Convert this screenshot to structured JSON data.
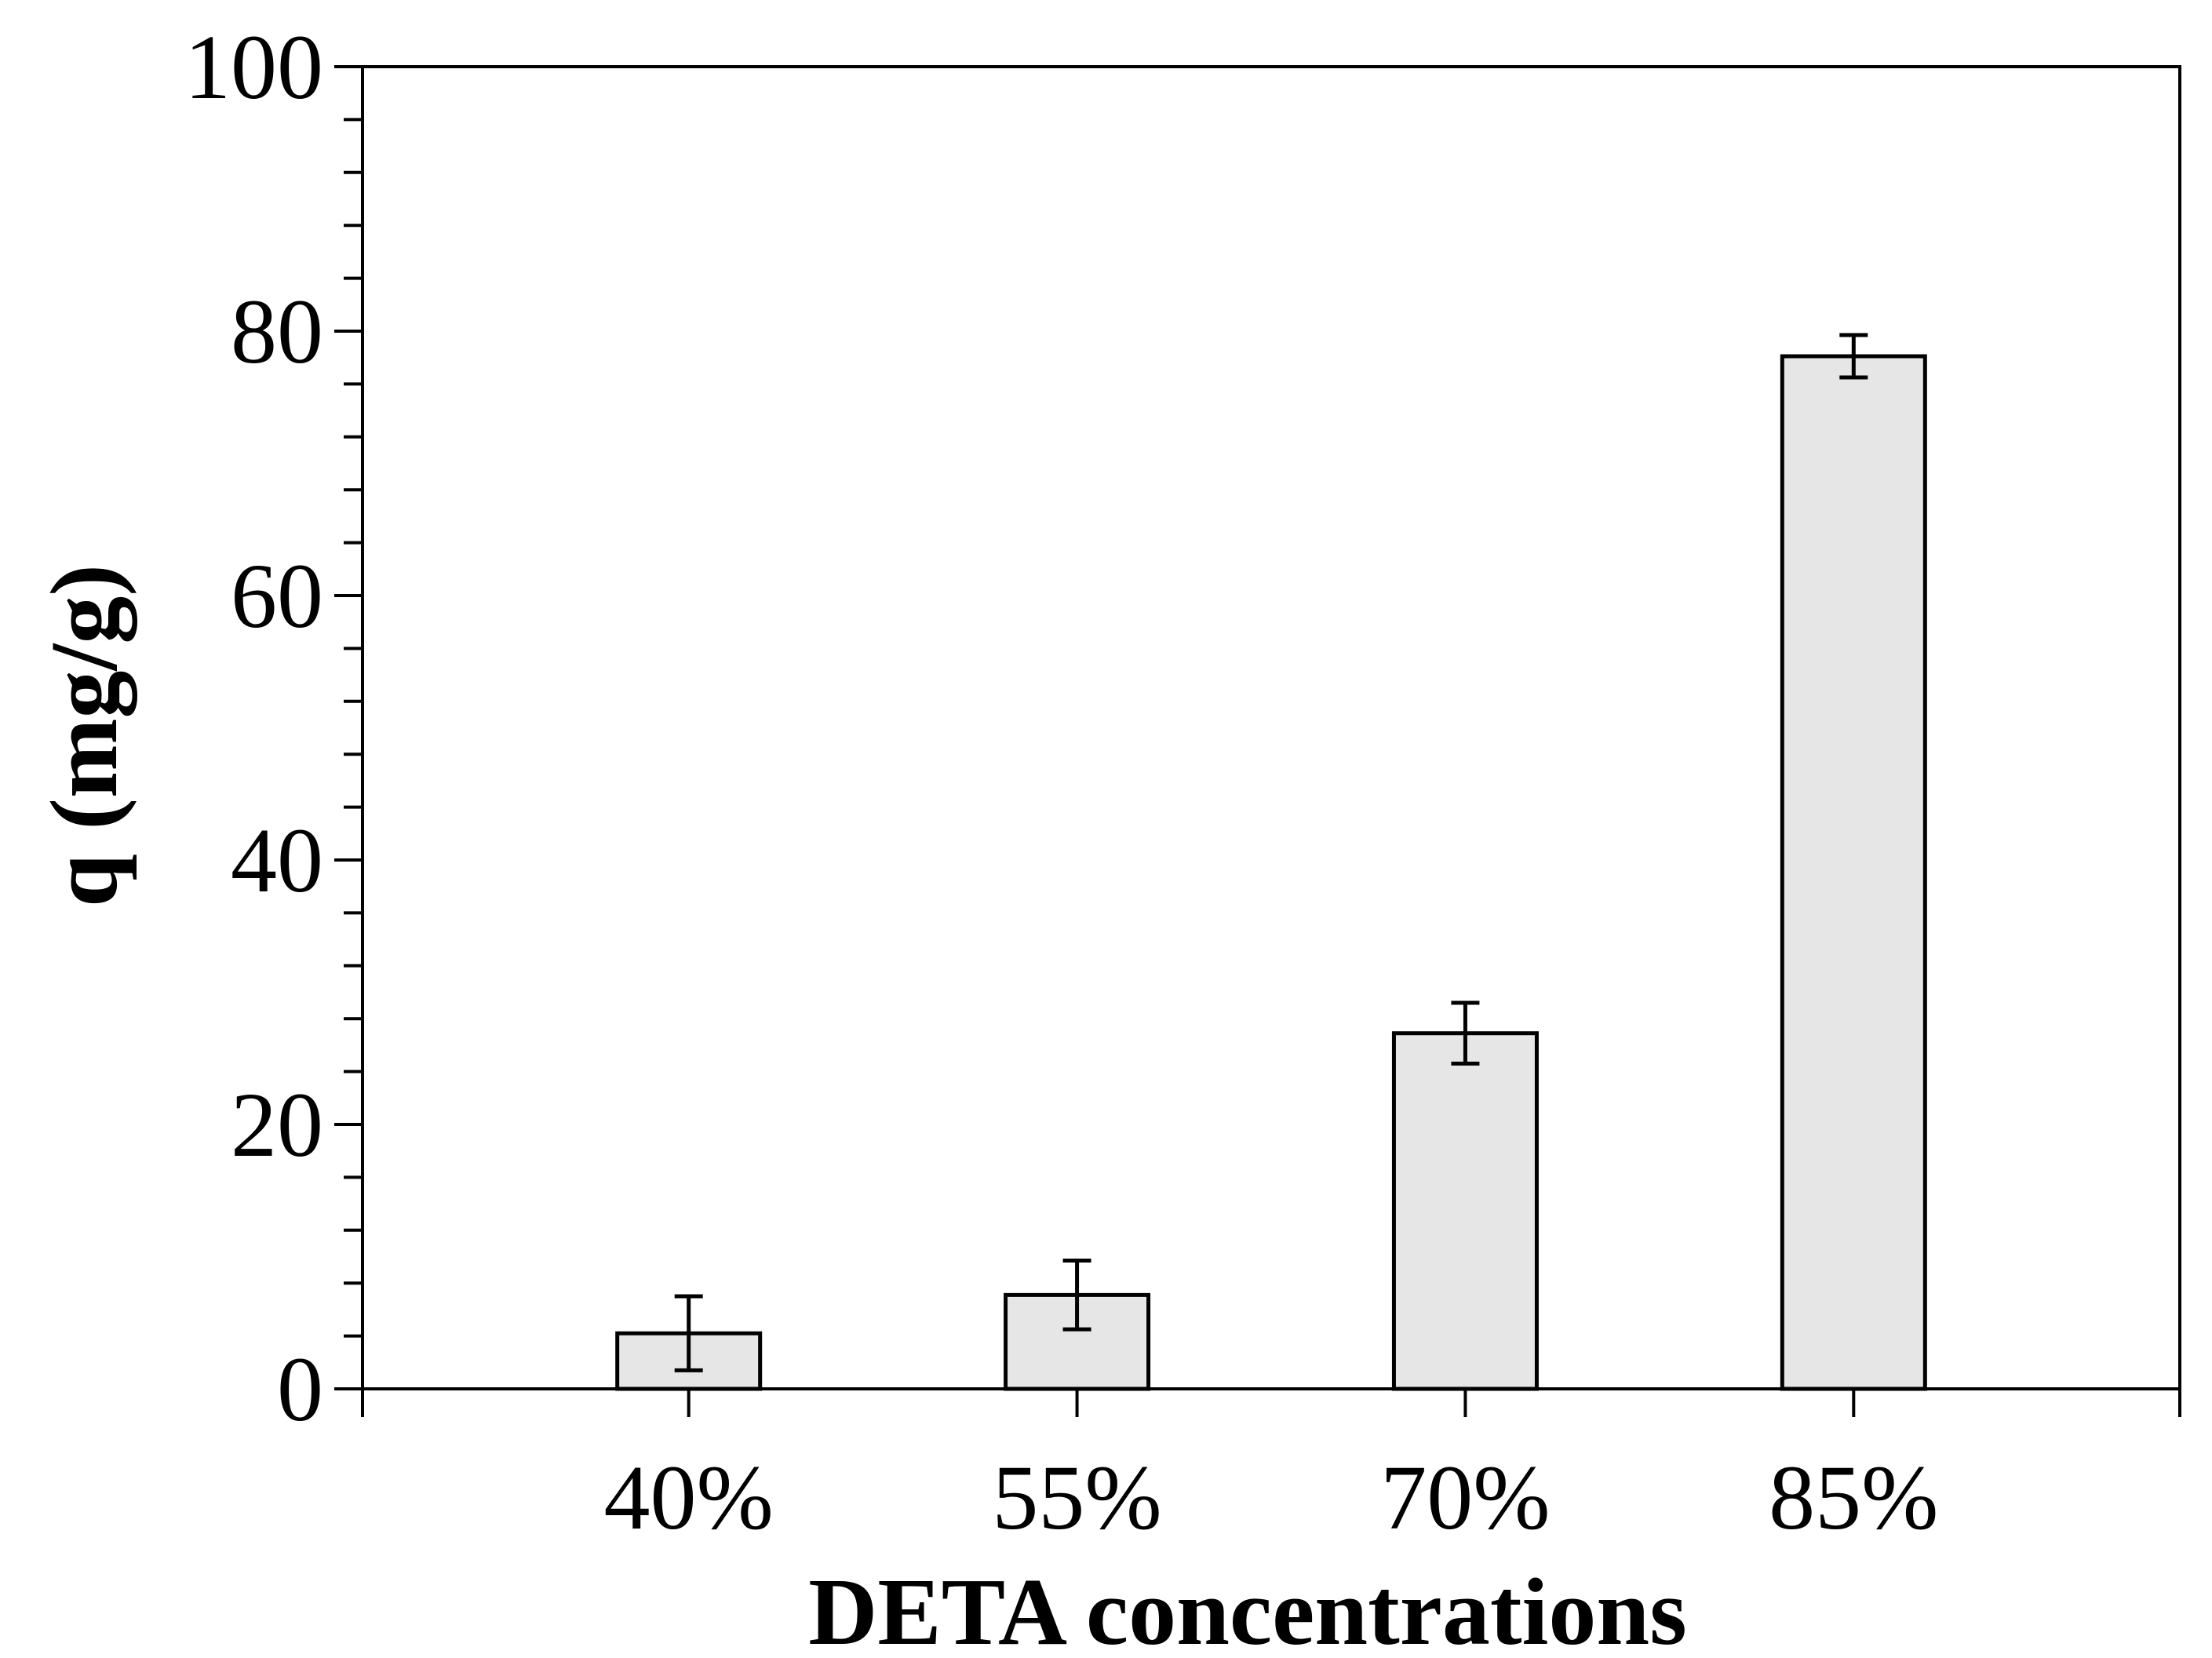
{
  "chart_data": {
    "type": "bar",
    "title": "",
    "categories": [
      "40%",
      "55%",
      "70%",
      "85%"
    ],
    "series": [
      {
        "name": "q",
        "values": [
          4.2,
          7.1,
          26.9,
          78.1
        ],
        "errors": [
          2.8,
          2.6,
          2.3,
          1.6
        ]
      }
    ],
    "xlabel": "DETA concentrations",
    "ylabel": "q (mg/g)",
    "ylim": [
      0,
      100
    ],
    "yticks": [
      0,
      20,
      40,
      60,
      80,
      100
    ],
    "y_minor_step": 4,
    "grid": false,
    "colors": {
      "bar_fill": "#e6e6e6",
      "bar_stroke": "#000000",
      "axis": "#000000"
    }
  }
}
